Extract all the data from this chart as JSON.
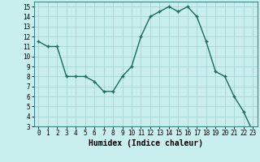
{
  "x": [
    0,
    1,
    2,
    3,
    4,
    5,
    6,
    7,
    8,
    9,
    10,
    11,
    12,
    13,
    14,
    15,
    16,
    17,
    18,
    19,
    20,
    21,
    22,
    23
  ],
  "y": [
    11.5,
    11,
    11,
    8,
    8,
    8,
    7.5,
    6.5,
    6.5,
    8,
    9,
    12,
    14,
    14.5,
    15,
    14.5,
    15,
    14,
    11.5,
    8.5,
    8,
    6,
    4.5,
    2.5
  ],
  "line_color": "#1a6b5a",
  "marker": "+",
  "marker_size": 3,
  "marker_lw": 1.0,
  "line_width": 1.0,
  "bg_color": "#c8eeee",
  "grid_color": "#a8d4d4",
  "xlabel": "Humidex (Indice chaleur)",
  "xlabel_fontsize": 7,
  "ylim": [
    3,
    15.5
  ],
  "xlim": [
    -0.5,
    23.5
  ],
  "yticks": [
    3,
    4,
    5,
    6,
    7,
    8,
    9,
    10,
    11,
    12,
    13,
    14,
    15
  ],
  "xticks": [
    0,
    1,
    2,
    3,
    4,
    5,
    6,
    7,
    8,
    9,
    10,
    11,
    12,
    13,
    14,
    15,
    16,
    17,
    18,
    19,
    20,
    21,
    22,
    23
  ],
  "tick_fontsize": 5.5
}
